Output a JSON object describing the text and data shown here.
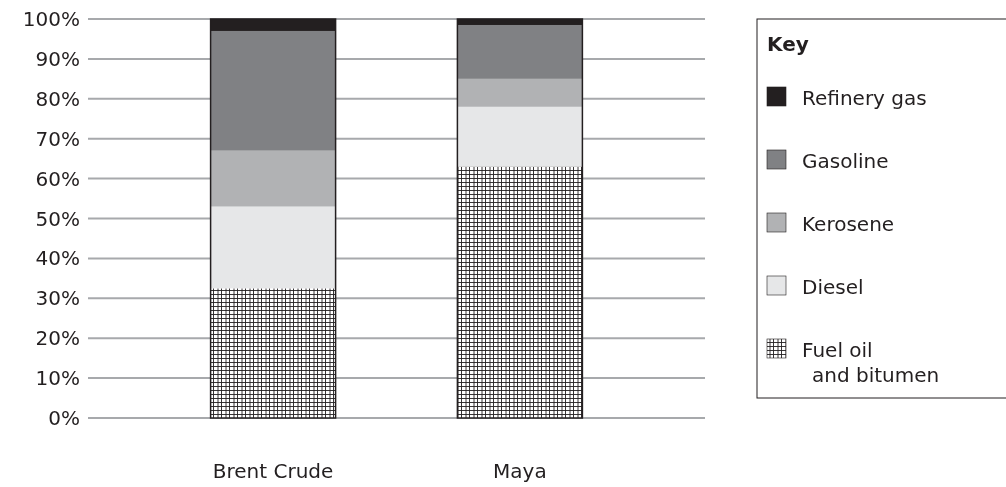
{
  "chart_data": {
    "type": "bar",
    "stacked": true,
    "categories": [
      "Brent Crude",
      "Maya"
    ],
    "series": [
      {
        "name": "Fuel oil and bitumen",
        "color": "#231f20",
        "values": [
          32.5,
          63
        ]
      },
      {
        "name": "Diesel",
        "color": "#e6e7e8",
        "values": [
          20.5,
          15
        ]
      },
      {
        "name": "Kerosene",
        "color": "#b1b2b4",
        "values": [
          14,
          7
        ]
      },
      {
        "name": "Gasoline",
        "color": "#808184",
        "values": [
          30,
          13.5
        ]
      },
      {
        "name": "Refinery gas",
        "color": "#231f20",
        "values": [
          3,
          1.5
        ]
      }
    ],
    "ylim": [
      0,
      100
    ],
    "yticks": [
      {
        "value": 0,
        "label": "0%"
      },
      {
        "value": 10,
        "label": "10%"
      },
      {
        "value": 20,
        "label": "20%"
      },
      {
        "value": 30,
        "label": "30%"
      },
      {
        "value": 40,
        "label": "40%"
      },
      {
        "value": 50,
        "label": "50%"
      },
      {
        "value": 60,
        "label": "60%"
      },
      {
        "value": 70,
        "label": "70%"
      },
      {
        "value": 80,
        "label": "80%"
      },
      {
        "value": 90,
        "label": "90%"
      },
      {
        "value": 100,
        "label": "100%"
      }
    ],
    "grid": "y",
    "legend": "right",
    "legend_title": "Key"
  }
}
